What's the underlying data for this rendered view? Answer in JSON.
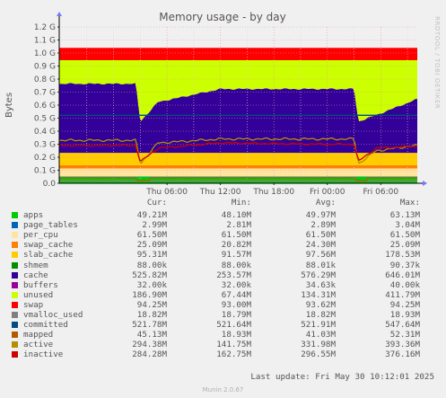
{
  "chart_data": {
    "type": "area",
    "title": "Memory usage - by day",
    "ylabel": "Bytes",
    "side_label": "RRDTOOL / TOBI OETIKER",
    "ylim": [
      0,
      1200000000
    ],
    "y_ticks": [
      {
        "value": 0,
        "label": "0.0"
      },
      {
        "value": 100000000,
        "label": "0.1 G"
      },
      {
        "value": 200000000,
        "label": "0.2 G"
      },
      {
        "value": 300000000,
        "label": "0.3 G"
      },
      {
        "value": 400000000,
        "label": "0.4 G"
      },
      {
        "value": 500000000,
        "label": "0.5 G"
      },
      {
        "value": 600000000,
        "label": "0.6 G"
      },
      {
        "value": 700000000,
        "label": "0.7 G"
      },
      {
        "value": 800000000,
        "label": "0.8 G"
      },
      {
        "value": 900000000,
        "label": "0.9 G"
      },
      {
        "value": 1000000000,
        "label": "1.0 G"
      },
      {
        "value": 1100000000,
        "label": "1.1 G"
      },
      {
        "value": 1200000000,
        "label": "1.2 G"
      }
    ],
    "x_range_hours": [
      0,
      33
    ],
    "x_ticks": [
      {
        "hour": 9,
        "label": "Thu 06:00"
      },
      {
        "hour": 15,
        "label": "Thu 12:00"
      },
      {
        "hour": 21,
        "label": "Thu 18:00"
      },
      {
        "hour": 27,
        "label": "Fri 00:00"
      },
      {
        "hour": 33,
        "label": "Fri 06:00"
      }
    ],
    "stack_order": [
      "apps",
      "page_tables",
      "per_cpu",
      "swap_cache",
      "slab_cache",
      "cache",
      "buffers",
      "unused",
      "swap"
    ],
    "line_series": [
      "vmalloc_used",
      "committed",
      "mapped",
      "active",
      "inactive"
    ],
    "key_points": {
      "hours": [
        0,
        5.5,
        6,
        8,
        15,
        25,
        30,
        30.5,
        32.5,
        37
      ],
      "cache": [
        530000000,
        530000000,
        240000000,
        390000000,
        490000000,
        490000000,
        490000000,
        240000000,
        290000000,
        410000000
      ],
      "active": [
        330000000,
        330000000,
        150000000,
        310000000,
        340000000,
        340000000,
        340000000,
        150000000,
        250000000,
        290000000
      ],
      "inactive": [
        290000000,
        290000000,
        165000000,
        270000000,
        310000000,
        300000000,
        300000000,
        170000000,
        270000000,
        284000000
      ]
    },
    "series": [
      {
        "key": "apps",
        "name": "apps",
        "color": "#00cc00",
        "cur": "49.21M",
        "min": "48.10M",
        "avg": "49.97M",
        "max": "63.13M"
      },
      {
        "key": "page_tables",
        "name": "page_tables",
        "color": "#0066b3",
        "cur": "2.99M",
        "min": "2.81M",
        "avg": "2.89M",
        "max": "3.04M"
      },
      {
        "key": "per_cpu",
        "name": "per_cpu",
        "color": "#ffe4a0",
        "cur": "61.50M",
        "min": "61.50M",
        "avg": "61.50M",
        "max": "61.50M"
      },
      {
        "key": "swap_cache",
        "name": "swap_cache",
        "color": "#ff8000",
        "cur": "25.09M",
        "min": "20.82M",
        "avg": "24.30M",
        "max": "25.09M"
      },
      {
        "key": "slab_cache",
        "name": "slab_cache",
        "color": "#ffcc00",
        "cur": "95.31M",
        "min": "91.57M",
        "avg": "97.56M",
        "max": "178.53M"
      },
      {
        "key": "shmem",
        "name": "shmem",
        "color": "#008f00",
        "cur": "88.00k",
        "min": "88.00k",
        "avg": "88.01k",
        "max": "90.37k"
      },
      {
        "key": "cache",
        "name": "cache",
        "color": "#330099",
        "cur": "525.82M",
        "min": "253.57M",
        "avg": "576.29M",
        "max": "646.01M"
      },
      {
        "key": "buffers",
        "name": "buffers",
        "color": "#990099",
        "cur": "32.00k",
        "min": "32.00k",
        "avg": "34.63k",
        "max": "40.00k"
      },
      {
        "key": "unused",
        "name": "unused",
        "color": "#ccff00",
        "cur": "186.90M",
        "min": "67.44M",
        "avg": "134.31M",
        "max": "411.79M"
      },
      {
        "key": "swap",
        "name": "swap",
        "color": "#ff0000",
        "cur": "94.25M",
        "min": "93.00M",
        "avg": "93.62M",
        "max": "94.25M"
      },
      {
        "key": "vmalloc_used",
        "name": "vmalloc_used",
        "color": "#808080",
        "cur": "18.82M",
        "min": "18.79M",
        "avg": "18.82M",
        "max": "18.93M"
      },
      {
        "key": "committed",
        "name": "committed",
        "color": "#004d80",
        "cur": "521.78M",
        "min": "521.64M",
        "avg": "521.91M",
        "max": "547.64M"
      },
      {
        "key": "mapped",
        "name": "mapped",
        "color": "#b35a00",
        "cur": "45.13M",
        "min": "18.93M",
        "avg": "41.03M",
        "max": "52.31M"
      },
      {
        "key": "active",
        "name": "active",
        "color": "#b38f00",
        "cur": "294.38M",
        "min": "141.75M",
        "avg": "331.98M",
        "max": "393.36M"
      },
      {
        "key": "inactive",
        "name": "inactive",
        "color": "#cc0000",
        "cur": "284.28M",
        "min": "162.75M",
        "avg": "296.55M",
        "max": "376.16M"
      }
    ],
    "legend_headers": {
      "cur": "Cur:",
      "min": "Min:",
      "avg": "Avg:",
      "max": "Max:"
    },
    "last_update": "Last update: Fri May 30 10:12:01 2025",
    "munin_version": "Munin 2.0.67"
  }
}
